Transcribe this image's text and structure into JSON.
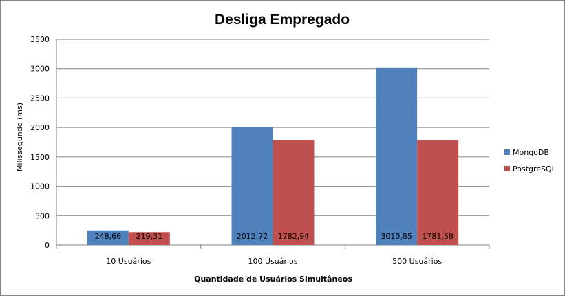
{
  "chart_data": {
    "type": "bar",
    "title": "Desliga Empregado",
    "xlabel": "Quantidade de Usuários Simultâneos",
    "ylabel": "Milissegundo (ms)",
    "categories": [
      "10 Usuários",
      "100 Usuários",
      "500 Usuários"
    ],
    "series": [
      {
        "name": "MongoDB",
        "values": [
          248.66,
          2012.72,
          3010.85
        ],
        "labels": [
          "248,66",
          "2012,72",
          "3010,85"
        ],
        "color": "#4f81bd"
      },
      {
        "name": "PostgreSQL",
        "values": [
          219.31,
          1782.94,
          1781.58
        ],
        "labels": [
          "219,31",
          "1782,94",
          "1781,58"
        ],
        "color": "#c0504d"
      }
    ],
    "ylim": [
      0,
      3500
    ],
    "yticks": [
      "0",
      "500",
      "1000",
      "1500",
      "2000",
      "2500",
      "3000",
      "3500"
    ],
    "grid": true,
    "legend_position": "right"
  }
}
